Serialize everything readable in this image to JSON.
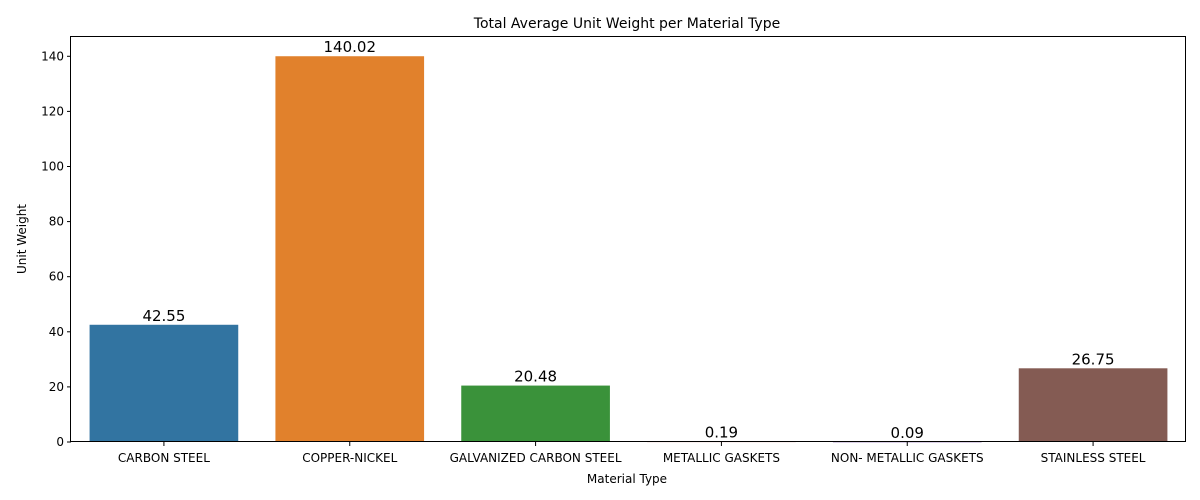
{
  "chart_data": {
    "type": "bar",
    "title": "Total Average Unit Weight per Material Type",
    "xlabel": "Material Type",
    "ylabel": "Unit Weight",
    "categories": [
      "CARBON STEEL",
      "COPPER-NICKEL",
      "GALVANIZED CARBON STEEL",
      "METALLIC GASKETS",
      "NON- METALLIC GASKETS",
      "STAINLESS STEEL"
    ],
    "values": [
      42.55,
      140.02,
      20.48,
      0.19,
      0.09,
      26.75
    ],
    "data_labels": [
      "42.55",
      "140.02",
      "20.48",
      "0.19",
      "0.09",
      "26.75"
    ],
    "colors": [
      "#3274a1",
      "#e1812c",
      "#3a923a",
      "#c03d3e",
      "#9372b2",
      "#845b53"
    ],
    "ylim": [
      0,
      147
    ],
    "yticks": [
      0,
      20,
      40,
      60,
      80,
      100,
      120,
      140
    ],
    "ytick_labels": [
      "0",
      "20",
      "40",
      "60",
      "80",
      "100",
      "120",
      "140"
    ],
    "grid": false,
    "legend": "none"
  }
}
